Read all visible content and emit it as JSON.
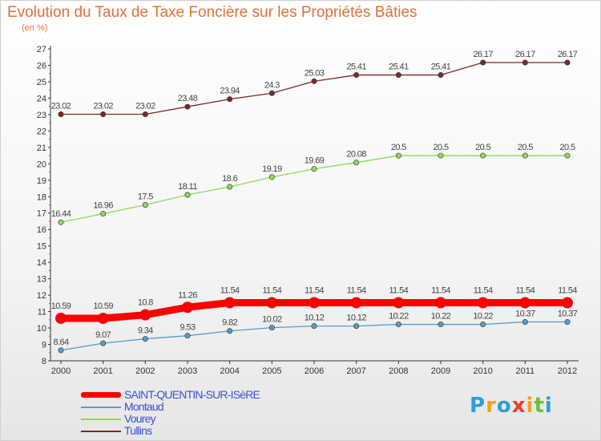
{
  "title": "Evolution du Taux de Taxe Foncière sur les Propriétés Bâties",
  "unit": "(en %)",
  "brand": {
    "letters": [
      "P",
      "r",
      "o",
      "x",
      "i",
      "t",
      "i"
    ],
    "colors": [
      "#2a9fd8",
      "#f0a020",
      "#2a9fd8",
      "#e8402a",
      "#f0a020",
      "#6abf3a",
      "#2a9fd8"
    ]
  },
  "chart_data": {
    "type": "line",
    "x": [
      "2000",
      "2001",
      "2002",
      "2003",
      "2004",
      "2005",
      "2006",
      "2007",
      "2008",
      "2009",
      "2010",
      "2011",
      "2012"
    ],
    "ylim": [
      8,
      27
    ],
    "yticks": [
      8,
      9,
      10,
      11,
      12,
      13,
      14,
      15,
      16,
      17,
      18,
      19,
      20,
      21,
      22,
      23,
      24,
      25,
      26,
      27
    ],
    "grid": false,
    "legend_position": "bottom-left",
    "series": [
      {
        "name": "SAINT-QUENTIN-SUR-ISèRE",
        "color": "#ff0000",
        "values": [
          10.59,
          10.59,
          10.8,
          11.26,
          11.54,
          11.54,
          11.54,
          11.54,
          11.54,
          11.54,
          11.54,
          11.54,
          11.54
        ],
        "labels": [
          "10.59",
          "10.59",
          "10.8",
          "11.26",
          "11.54",
          "11.54",
          "11.54",
          "11.54",
          "11.54",
          "11.54",
          "11.54",
          "11.54",
          "11.54"
        ]
      },
      {
        "name": "Montaud",
        "color": "#5b9bc8",
        "values": [
          8.64,
          9.07,
          9.34,
          9.53,
          9.82,
          10.02,
          10.12,
          10.12,
          10.22,
          10.22,
          10.22,
          10.37,
          10.37
        ],
        "labels": [
          "8.64",
          "9.07",
          "9.34",
          "9.53",
          "9.82",
          "10.02",
          "10.12",
          "10.12",
          "10.22",
          "10.22",
          "10.22",
          "10.37",
          "10.37"
        ]
      },
      {
        "name": "Vourey",
        "color": "#8fd860",
        "values": [
          16.44,
          16.96,
          17.5,
          18.11,
          18.6,
          19.19,
          19.69,
          20.08,
          20.5,
          20.5,
          20.5,
          20.5,
          20.5
        ],
        "labels": [
          "16.44",
          "16.96",
          "17.5",
          "18.11",
          "18.6",
          "19.19",
          "19.69",
          "20.08",
          "20.5",
          "20.5",
          "20.5",
          "20.5",
          "20.5"
        ]
      },
      {
        "name": "Tullins",
        "color": "#7a2a2a",
        "values": [
          23.02,
          23.02,
          23.02,
          23.48,
          23.94,
          24.3,
          25.03,
          25.41,
          25.41,
          25.41,
          26.17,
          26.17,
          26.17
        ],
        "labels": [
          "23.02",
          "23.02",
          "23.02",
          "23.48",
          "23.94",
          "24.3",
          "25.03",
          "25.41",
          "25.41",
          "25.41",
          "26.17",
          "26.17",
          "26.17"
        ]
      }
    ]
  }
}
